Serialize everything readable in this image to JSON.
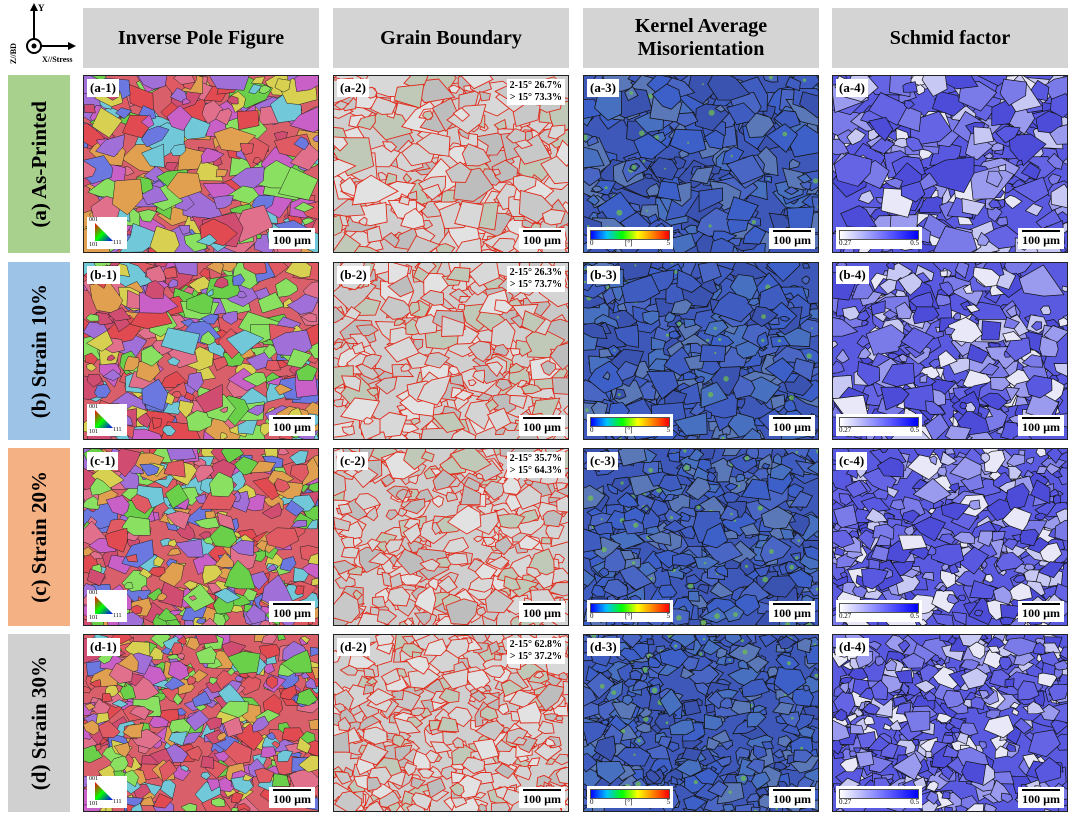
{
  "axes": {
    "y": "Y",
    "z": "Z//BD",
    "x": "X//Stress"
  },
  "columns": [
    "Inverse Pole Figure",
    "Grain Boundary",
    "Kernel Average Misorientation",
    "Schmid factor"
  ],
  "rows": [
    {
      "label": "(a) As-Printed",
      "panels": [
        "(a-1)",
        "(a-2)",
        "(a-3)",
        "(a-4)"
      ],
      "boundary": [
        "2-15° 26.7%",
        "> 15° 73.3%"
      ]
    },
    {
      "label": "(b) Strain 10%",
      "panels": [
        "(b-1)",
        "(b-2)",
        "(b-3)",
        "(b-4)"
      ],
      "boundary": [
        "2-15° 26.3%",
        "> 15° 73.7%"
      ]
    },
    {
      "label": "(c) Strain 20%",
      "panels": [
        "(c-1)",
        "(c-2)",
        "(c-3)",
        "(c-4)"
      ],
      "boundary": [
        "2-15° 35.7%",
        "> 15° 64.3%"
      ]
    },
    {
      "label": "(d) Strain 30%",
      "panels": [
        "(d-1)",
        "(d-2)",
        "(d-3)",
        "(d-4)"
      ],
      "boundary": [
        "2-15° 62.8%",
        "> 15° 37.2%"
      ]
    }
  ],
  "scale_bar": "100 µm",
  "ipf_legend": [
    "001",
    "101",
    "111"
  ],
  "kam_legend": [
    "0",
    "[°]",
    "5"
  ],
  "schmid_legend": [
    "0.27",
    "0.5"
  ]
}
